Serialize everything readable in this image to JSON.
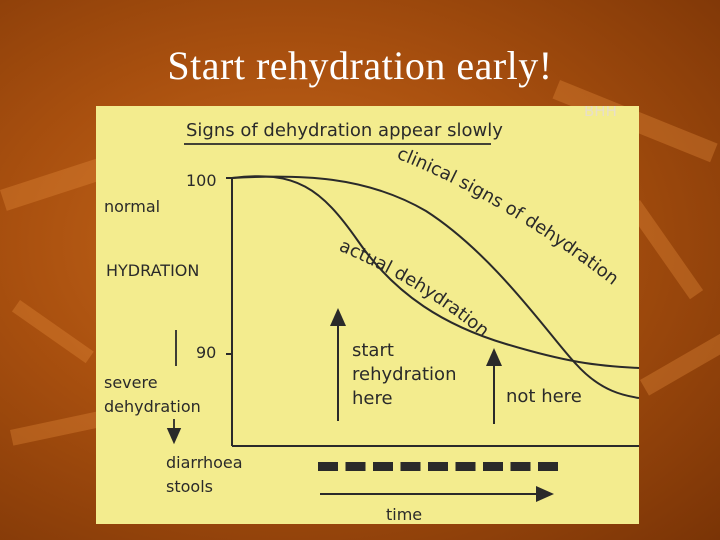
{
  "slide": {
    "title": "Start rehydration early!"
  },
  "figure": {
    "heading": "Signs of dehydration appear slowly",
    "corner_mark": "BHH",
    "y_axis": {
      "tick_high": "100",
      "tick_low": "90",
      "label_top": "normal",
      "label_mid": "HYDRATION",
      "label_bottom_line1": "severe",
      "label_bottom_line2": "dehydration"
    },
    "curves": {
      "clinical": "clinical signs of dehydration",
      "actual": "actual dehydration"
    },
    "annotations": {
      "start_line1": "start",
      "start_line2": "rehydration",
      "start_line3": "here",
      "not_here": "not here"
    },
    "x_axis": {
      "stools_line1": "diarrhoea",
      "stools_line2": "stools",
      "stool_count": 9,
      "time_label": "time"
    },
    "colors": {
      "background": "#f3ec8e",
      "ink": "#2a2a2a"
    }
  }
}
